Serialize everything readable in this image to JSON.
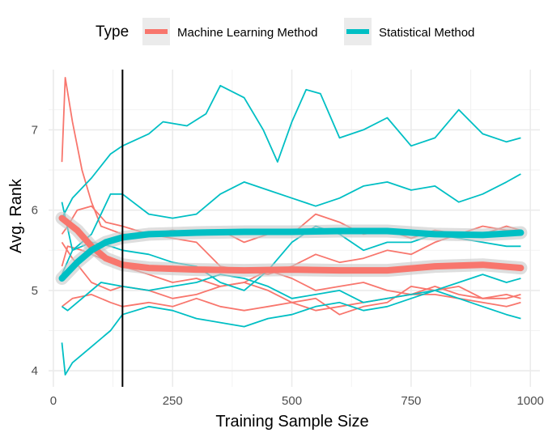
{
  "chart_data": {
    "type": "line",
    "xlabel": "Training Sample Size",
    "ylabel": "Avg. Rank",
    "xlim": [
      -10,
      1020
    ],
    "ylim": [
      3.8,
      7.75
    ],
    "x_ticks": [
      0,
      250,
      500,
      750,
      1000
    ],
    "y_ticks": [
      4,
      5,
      6,
      7
    ],
    "grid": true,
    "vertical_line_x": 145,
    "legend": {
      "title": "Type",
      "position": "top",
      "entries": [
        {
          "label": "Machine Learning Method",
          "color": "#F8766D"
        },
        {
          "label": "Statistical Method",
          "color": "#00BFC4"
        }
      ]
    },
    "series": [
      {
        "group": "Machine Learning Method",
        "color": "#F8766D",
        "x": [
          18,
          25,
          40,
          60,
          80,
          100,
          145,
          200,
          250,
          300,
          350,
          400,
          450,
          500,
          550,
          600,
          650,
          700,
          750,
          800,
          850,
          900,
          950,
          980
        ],
        "y": [
          6.6,
          7.65,
          7.1,
          6.5,
          6.1,
          5.8,
          5.7,
          5.7,
          5.75,
          5.7,
          5.75,
          5.6,
          5.7,
          5.7,
          5.95,
          5.85,
          5.7,
          5.75,
          5.65,
          5.75,
          5.7,
          5.8,
          5.75,
          5.75
        ]
      },
      {
        "group": "Machine Learning Method",
        "color": "#F8766D",
        "x": [
          18,
          30,
          50,
          80,
          110,
          145,
          200,
          250,
          300,
          350,
          400,
          450,
          500,
          550,
          600,
          650,
          700,
          750,
          800,
          850,
          900,
          950,
          980
        ],
        "y": [
          5.7,
          5.8,
          6.0,
          6.05,
          5.85,
          5.8,
          5.7,
          5.65,
          5.6,
          5.3,
          5.25,
          5.2,
          5.3,
          5.45,
          5.35,
          5.4,
          5.5,
          5.45,
          5.6,
          5.7,
          5.7,
          5.8,
          5.75
        ]
      },
      {
        "group": "Machine Learning Method",
        "color": "#F8766D",
        "x": [
          18,
          30,
          60,
          100,
          145,
          200,
          250,
          300,
          350,
          400,
          450,
          500,
          550,
          600,
          650,
          700,
          750,
          800,
          850,
          900,
          950,
          980
        ],
        "y": [
          5.3,
          5.55,
          5.5,
          5.4,
          5.3,
          5.2,
          5.1,
          5.15,
          5.05,
          5.1,
          5.25,
          5.15,
          5.0,
          5.05,
          5.1,
          5.0,
          4.95,
          5.05,
          4.95,
          4.9,
          4.95,
          4.9
        ]
      },
      {
        "group": "Machine Learning Method",
        "color": "#F8766D",
        "x": [
          18,
          40,
          80,
          120,
          145,
          200,
          250,
          300,
          350,
          400,
          450,
          500,
          550,
          600,
          650,
          700,
          750,
          800,
          850,
          900,
          950,
          980
        ],
        "y": [
          4.8,
          4.9,
          4.95,
          4.85,
          4.8,
          4.85,
          4.8,
          4.9,
          4.8,
          4.75,
          4.8,
          4.85,
          4.75,
          4.8,
          4.85,
          4.9,
          4.95,
          4.95,
          4.9,
          4.85,
          4.8,
          4.85
        ]
      },
      {
        "group": "Machine Learning Method",
        "color": "#F8766D",
        "x": [
          18,
          40,
          80,
          120,
          145,
          200,
          250,
          300,
          350,
          400,
          450,
          500,
          550,
          600,
          650,
          700,
          750,
          800,
          850,
          900,
          950,
          980
        ],
        "y": [
          5.6,
          5.4,
          5.1,
          5.0,
          5.05,
          5.0,
          4.9,
          4.95,
          5.05,
          5.1,
          5.0,
          4.85,
          4.9,
          4.7,
          4.8,
          4.85,
          5.05,
          5.0,
          5.05,
          4.9,
          4.9,
          4.95
        ]
      },
      {
        "group": "Statistical Method",
        "color": "#00BFC4",
        "x": [
          18,
          40,
          80,
          120,
          145,
          200,
          230,
          280,
          320,
          350,
          400,
          440,
          470,
          500,
          530,
          560,
          600,
          650,
          700,
          750,
          800,
          850,
          900,
          950,
          980
        ],
        "y": [
          5.9,
          6.15,
          6.4,
          6.7,
          6.8,
          6.95,
          7.1,
          7.05,
          7.2,
          7.55,
          7.4,
          7.0,
          6.6,
          7.1,
          7.5,
          7.45,
          6.9,
          7.0,
          7.15,
          6.8,
          6.9,
          7.25,
          6.95,
          6.85,
          6.9
        ]
      },
      {
        "group": "Statistical Method",
        "color": "#00BFC4",
        "x": [
          18,
          40,
          80,
          120,
          145,
          200,
          250,
          300,
          350,
          400,
          450,
          500,
          550,
          600,
          650,
          700,
          750,
          800,
          850,
          900,
          950,
          980
        ],
        "y": [
          6.1,
          5.5,
          5.7,
          6.2,
          6.2,
          5.95,
          5.9,
          5.95,
          6.2,
          6.35,
          6.25,
          6.15,
          6.05,
          6.15,
          6.3,
          6.35,
          6.25,
          6.3,
          6.1,
          6.2,
          6.35,
          6.45
        ]
      },
      {
        "group": "Statistical Method",
        "color": "#00BFC4",
        "x": [
          18,
          40,
          80,
          120,
          145,
          200,
          250,
          300,
          350,
          400,
          450,
          500,
          550,
          600,
          650,
          700,
          750,
          800,
          850,
          900,
          950,
          980
        ],
        "y": [
          5.2,
          5.5,
          5.6,
          5.55,
          5.5,
          5.45,
          5.35,
          5.3,
          5.1,
          5.0,
          5.25,
          5.6,
          5.8,
          5.7,
          5.5,
          5.6,
          5.6,
          5.7,
          5.65,
          5.6,
          5.55,
          5.55
        ]
      },
      {
        "group": "Statistical Method",
        "color": "#00BFC4",
        "x": [
          18,
          30,
          60,
          100,
          145,
          200,
          250,
          300,
          350,
          400,
          450,
          500,
          550,
          600,
          650,
          700,
          750,
          800,
          850,
          900,
          950,
          980
        ],
        "y": [
          4.8,
          4.75,
          4.9,
          5.1,
          5.05,
          5.0,
          5.05,
          5.1,
          5.2,
          5.15,
          5.05,
          4.9,
          4.95,
          5.0,
          4.85,
          4.9,
          4.95,
          5.0,
          5.1,
          5.2,
          5.1,
          5.15
        ]
      },
      {
        "group": "Statistical Method",
        "color": "#00BFC4",
        "x": [
          18,
          25,
          40,
          80,
          120,
          145,
          200,
          250,
          300,
          350,
          400,
          450,
          500,
          550,
          600,
          650,
          700,
          750,
          800,
          850,
          900,
          950,
          980
        ],
        "y": [
          4.35,
          3.95,
          4.1,
          4.3,
          4.5,
          4.7,
          4.8,
          4.75,
          4.65,
          4.6,
          4.55,
          4.65,
          4.7,
          4.8,
          4.85,
          4.75,
          4.8,
          4.9,
          5.0,
          4.9,
          4.8,
          4.7,
          4.65
        ]
      }
    ],
    "smooth_series": [
      {
        "group": "Machine Learning Method",
        "color": "#F8766D",
        "x": [
          18,
          50,
          80,
          110,
          145,
          200,
          250,
          300,
          400,
          500,
          600,
          700,
          800,
          900,
          980
        ],
        "y": [
          5.9,
          5.75,
          5.55,
          5.4,
          5.32,
          5.28,
          5.27,
          5.26,
          5.25,
          5.26,
          5.25,
          5.25,
          5.3,
          5.32,
          5.28
        ]
      },
      {
        "group": "Statistical Method",
        "color": "#00BFC4",
        "x": [
          18,
          50,
          80,
          110,
          145,
          200,
          250,
          300,
          400,
          500,
          600,
          700,
          800,
          900,
          980
        ],
        "y": [
          5.15,
          5.35,
          5.5,
          5.6,
          5.66,
          5.7,
          5.71,
          5.72,
          5.73,
          5.73,
          5.74,
          5.74,
          5.7,
          5.69,
          5.72
        ]
      }
    ]
  }
}
